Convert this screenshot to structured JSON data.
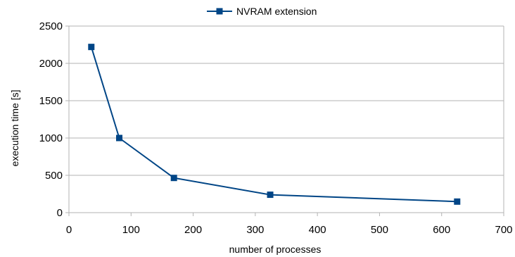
{
  "chart_data": {
    "type": "line",
    "title": "",
    "xlabel": "number of processes",
    "ylabel": "execution time [s]",
    "xlim": [
      0,
      700
    ],
    "ylim": [
      0,
      2500
    ],
    "xticks": [
      0,
      100,
      200,
      300,
      400,
      500,
      600,
      700
    ],
    "yticks": [
      0,
      500,
      1000,
      1500,
      2000,
      2500
    ],
    "grid": true,
    "legend_position": "top-center",
    "series": [
      {
        "name": "NVRAM extension",
        "color": "#004586",
        "marker": "square",
        "x": [
          36,
          81,
          169,
          324,
          625
        ],
        "y": [
          2220,
          1000,
          465,
          240,
          148
        ]
      }
    ]
  }
}
